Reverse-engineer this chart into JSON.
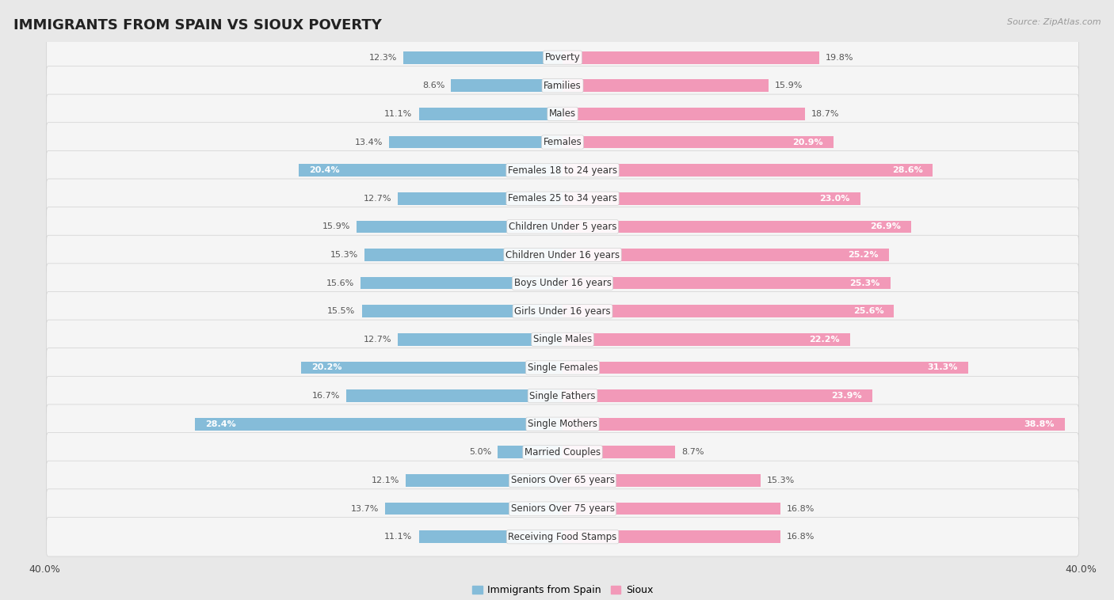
{
  "title": "IMMIGRANTS FROM SPAIN VS SIOUX POVERTY",
  "source": "Source: ZipAtlas.com",
  "categories": [
    "Poverty",
    "Families",
    "Males",
    "Females",
    "Females 18 to 24 years",
    "Females 25 to 34 years",
    "Children Under 5 years",
    "Children Under 16 years",
    "Boys Under 16 years",
    "Girls Under 16 years",
    "Single Males",
    "Single Females",
    "Single Fathers",
    "Single Mothers",
    "Married Couples",
    "Seniors Over 65 years",
    "Seniors Over 75 years",
    "Receiving Food Stamps"
  ],
  "spain_values": [
    12.3,
    8.6,
    11.1,
    13.4,
    20.4,
    12.7,
    15.9,
    15.3,
    15.6,
    15.5,
    12.7,
    20.2,
    16.7,
    28.4,
    5.0,
    12.1,
    13.7,
    11.1
  ],
  "sioux_values": [
    19.8,
    15.9,
    18.7,
    20.9,
    28.6,
    23.0,
    26.9,
    25.2,
    25.3,
    25.6,
    22.2,
    31.3,
    23.9,
    38.8,
    8.7,
    15.3,
    16.8,
    16.8
  ],
  "spain_color": "#85bcd9",
  "sioux_color": "#f299b8",
  "spain_label": "Immigrants from Spain",
  "sioux_label": "Sioux",
  "xlim": 40.0,
  "background_color": "#e8e8e8",
  "row_bg_color": "#f5f5f5",
  "row_border_color": "#d0d0d0",
  "title_fontsize": 13,
  "label_fontsize": 8.5,
  "value_fontsize": 8,
  "white_text_threshold": 20.0,
  "axis_label_fontsize": 9
}
